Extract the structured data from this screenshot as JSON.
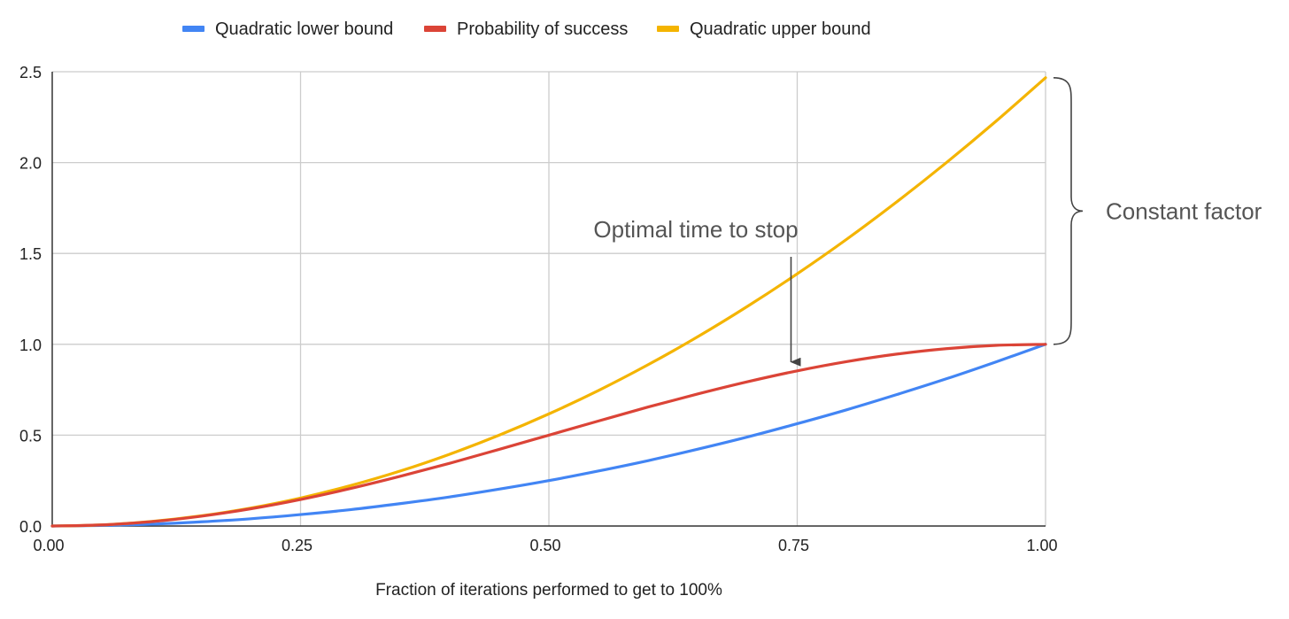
{
  "chart_data": {
    "type": "line",
    "title": "",
    "xlabel": "Fraction of iterations performed to get to 100%",
    "ylabel": "",
    "xlim": [
      0,
      1
    ],
    "ylim": [
      0,
      2.5
    ],
    "x_ticks": [
      "0.00",
      "0.25",
      "0.50",
      "0.75",
      "1.00"
    ],
    "y_ticks": [
      "0.0",
      "0.5",
      "1.0",
      "1.5",
      "2.0",
      "2.5"
    ],
    "grid": true,
    "legend_position": "top",
    "x": [
      0,
      0.05,
      0.1,
      0.15,
      0.2,
      0.25,
      0.3,
      0.35,
      0.4,
      0.45,
      0.5,
      0.55,
      0.6,
      0.65,
      0.7,
      0.75,
      0.8,
      0.85,
      0.9,
      0.95,
      1.0
    ],
    "series": [
      {
        "name": "Quadratic lower bound",
        "color": "#4285f4",
        "values": [
          0,
          0.003,
          0.01,
          0.023,
          0.04,
          0.063,
          0.09,
          0.123,
          0.16,
          0.203,
          0.25,
          0.303,
          0.36,
          0.423,
          0.49,
          0.563,
          0.64,
          0.723,
          0.81,
          0.903,
          1.0
        ]
      },
      {
        "name": "Probability of success",
        "color": "#db4437",
        "values": [
          0,
          0.006,
          0.024,
          0.054,
          0.095,
          0.146,
          0.206,
          0.273,
          0.345,
          0.422,
          0.5,
          0.578,
          0.655,
          0.727,
          0.794,
          0.854,
          0.905,
          0.946,
          0.976,
          0.994,
          1.0
        ]
      },
      {
        "name": "Quadratic upper bound",
        "color": "#f4b400",
        "values": [
          0,
          0.006,
          0.025,
          0.056,
          0.099,
          0.154,
          0.222,
          0.302,
          0.395,
          0.5,
          0.617,
          0.746,
          0.888,
          1.042,
          1.209,
          1.388,
          1.579,
          1.783,
          1.999,
          2.227,
          2.467
        ]
      }
    ],
    "annotations": [
      {
        "text": "Optimal time to stop",
        "x": 0.75,
        "y": 0.854,
        "arrow": true
      },
      {
        "text": "Constant factor",
        "bracket_from_y": 1.0,
        "bracket_to_y": 2.467
      }
    ]
  }
}
